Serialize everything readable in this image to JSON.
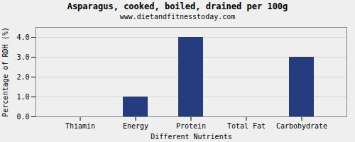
{
  "chart_data": {
    "type": "bar",
    "title": "Asparagus, cooked, boiled, drained per 100g",
    "subtitle": "www.dietandfitnesstoday.com",
    "xlabel": "Different Nutrients",
    "ylabel": "Percentage of RDH (%)",
    "categories": [
      "Thiamin",
      "Energy",
      "Protein",
      "Total Fat",
      "Carbohydrate"
    ],
    "values": [
      0.0,
      1.0,
      4.0,
      0.0,
      3.0
    ],
    "color": "#253d7f",
    "ylim": [
      0,
      4.5
    ],
    "yticks": [
      {
        "value": 0,
        "label": "0.0"
      },
      {
        "value": 1,
        "label": "1.0"
      },
      {
        "value": 2,
        "label": "2.0"
      },
      {
        "value": 3,
        "label": "3.0"
      },
      {
        "value": 4,
        "label": "4.0"
      }
    ],
    "grid": true
  }
}
